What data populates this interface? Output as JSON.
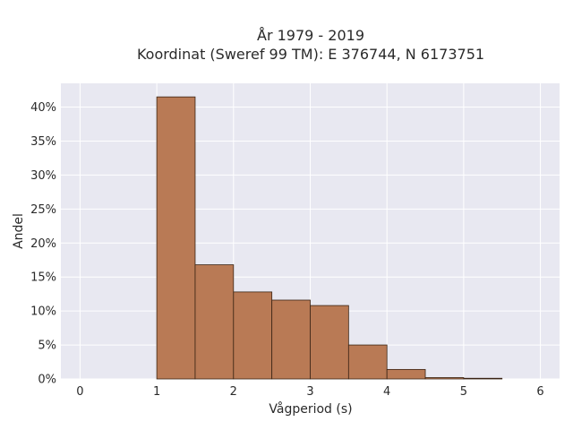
{
  "chart_data": {
    "type": "bar",
    "title": "År 1979 - 2019",
    "subtitle": "Koordinat (Sweref 99 TM): E 376744, N 6173751",
    "xlabel": "Vågperiod (s)",
    "ylabel": "Andel",
    "xlim": [
      -0.25,
      6.25
    ],
    "ylim": [
      0,
      0.435
    ],
    "xticks": [
      0,
      1,
      2,
      3,
      4,
      5,
      6
    ],
    "yticks": [
      0,
      0.05,
      0.1,
      0.15,
      0.2,
      0.25,
      0.3,
      0.35,
      0.4
    ],
    "ytick_labels": [
      "0%",
      "5%",
      "10%",
      "15%",
      "20%",
      "25%",
      "30%",
      "35%",
      "40%"
    ],
    "bin_width": 0.5,
    "bins": [
      {
        "x0": 1.0,
        "value": 0.415
      },
      {
        "x0": 1.5,
        "value": 0.168
      },
      {
        "x0": 2.0,
        "value": 0.128
      },
      {
        "x0": 2.5,
        "value": 0.116
      },
      {
        "x0": 3.0,
        "value": 0.108
      },
      {
        "x0": 3.5,
        "value": 0.05
      },
      {
        "x0": 4.0,
        "value": 0.014
      },
      {
        "x0": 4.5,
        "value": 0.002
      },
      {
        "x0": 5.0,
        "value": 0.001
      }
    ],
    "grid": true,
    "colors": {
      "bar_fill": "#b97a55",
      "bar_stroke": "#3a2414",
      "plot_bg": "#e8e8f1",
      "grid": "#ffffff"
    }
  }
}
